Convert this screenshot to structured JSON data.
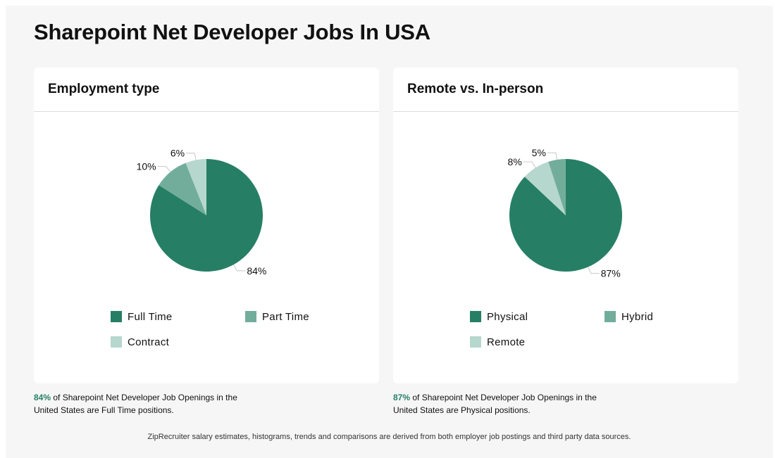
{
  "page": {
    "title": "Sharepoint Net Developer Jobs In USA"
  },
  "colors": {
    "dark": "#267f65",
    "mid": "#72ad9c",
    "light": "#b6d7cd",
    "accent_text": "#267f65"
  },
  "chart_data": [
    {
      "type": "pie",
      "title": "Employment type",
      "slices": [
        {
          "label": "Full Time",
          "value": 84,
          "display": "84%",
          "color": "#267f65"
        },
        {
          "label": "Part Time",
          "value": 10,
          "display": "10%",
          "color": "#72ad9c"
        },
        {
          "label": "Contract",
          "value": 6,
          "display": "6%",
          "color": "#b6d7cd"
        }
      ],
      "legend": [
        "Full Time",
        "Part Time",
        "Contract"
      ],
      "legend_position": "bottom"
    },
    {
      "type": "pie",
      "title": "Remote vs. In-person",
      "slices": [
        {
          "label": "Physical",
          "value": 87,
          "display": "87%",
          "color": "#267f65"
        },
        {
          "label": "Hybrid",
          "value": 5,
          "display": "5%",
          "color": "#72ad9c"
        },
        {
          "label": "Remote",
          "value": 8,
          "display": "8%",
          "color": "#b6d7cd"
        }
      ],
      "legend": [
        "Physical",
        "Hybrid",
        "Remote"
      ],
      "legend_position": "bottom"
    }
  ],
  "summaries": [
    {
      "pct": "84%",
      "text": " of Sharepoint Net Developer Job Openings in the United States are Full Time positions."
    },
    {
      "pct": "87%",
      "text": " of Sharepoint Net Developer Job Openings in the United States are Physical positions."
    }
  ],
  "footnote": "ZipRecruiter salary estimates, histograms, trends and comparisons are derived from both employer job postings and third party data sources."
}
